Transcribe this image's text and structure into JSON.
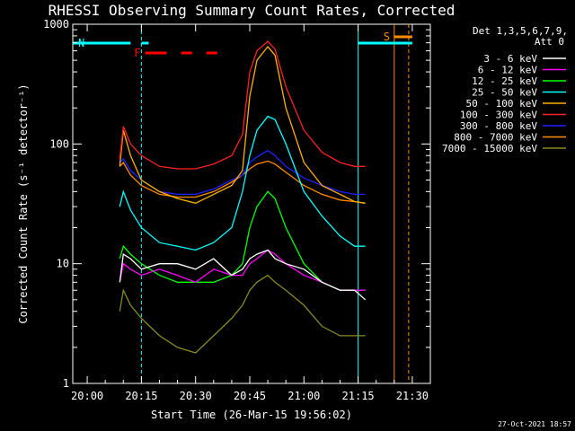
{
  "chart_data": {
    "type": "line",
    "title": "RHESSI Observing Summary Count Rates, Corrected",
    "xlabel": "Start Time (26-Mar-15 19:56:02)",
    "ylabel": "Corrected Count Rate (s⁻¹ detector⁻¹)",
    "y_scale": "log",
    "ylim": [
      1,
      1000
    ],
    "xlim": [
      "19:56",
      "21:35"
    ],
    "x_ticks": [
      "20:00",
      "20:15",
      "20:30",
      "20:45",
      "21:00",
      "21:15",
      "21:30"
    ],
    "y_ticks": [
      "1",
      "10",
      "100",
      "1000"
    ],
    "legend_header": [
      "Det 1,3,5,6,7,9,",
      "Att 0"
    ],
    "legend_position": "top-right",
    "footer_date": "27-Oct-2021 18:57",
    "x": [
      "20:09",
      "20:10",
      "20:12",
      "20:15",
      "20:20",
      "20:25",
      "20:30",
      "20:35",
      "20:40",
      "20:43",
      "20:45",
      "20:47",
      "20:50",
      "20:52",
      "20:55",
      "21:00",
      "21:05",
      "21:10",
      "21:14",
      "21:17"
    ],
    "series": [
      {
        "name": "3 - 6 keV",
        "color": "#ffffff",
        "values": [
          7,
          12,
          11,
          9,
          10,
          10,
          9,
          11,
          8,
          9,
          11,
          12,
          13,
          11,
          10,
          9,
          7,
          6,
          6,
          5
        ]
      },
      {
        "name": "6 - 12 keV",
        "color": "#ff00ff",
        "values": [
          7,
          10,
          9,
          8,
          9,
          8,
          7,
          9,
          8,
          8,
          10,
          11,
          13,
          12,
          10,
          8,
          7,
          6,
          6,
          6
        ]
      },
      {
        "name": "12 - 25 keV",
        "color": "#00ff00",
        "values": [
          11,
          14,
          12,
          10,
          8,
          7,
          7,
          7,
          8,
          10,
          20,
          30,
          40,
          35,
          20,
          10,
          7,
          6,
          6,
          6
        ]
      },
      {
        "name": "25 - 50 keV",
        "color": "#00ffff",
        "values": [
          30,
          40,
          28,
          20,
          15,
          14,
          13,
          15,
          20,
          40,
          80,
          130,
          170,
          160,
          100,
          40,
          25,
          17,
          14,
          14
        ]
      },
      {
        "name": "50 - 100 keV",
        "color": "#ffb000",
        "values": [
          65,
          130,
          80,
          50,
          40,
          35,
          32,
          38,
          45,
          60,
          250,
          500,
          650,
          550,
          200,
          70,
          45,
          38,
          33,
          32
        ]
      },
      {
        "name": "100 - 300 keV",
        "color": "#ff2020",
        "values": [
          75,
          140,
          100,
          80,
          65,
          62,
          62,
          68,
          80,
          120,
          400,
          600,
          720,
          620,
          300,
          130,
          85,
          70,
          65,
          65
        ]
      },
      {
        "name": "300 - 800 keV",
        "color": "#2020ff",
        "values": [
          70,
          75,
          60,
          50,
          40,
          38,
          38,
          42,
          50,
          55,
          70,
          78,
          88,
          80,
          65,
          52,
          45,
          40,
          38,
          38
        ]
      },
      {
        "name": "800 - 7000 keV",
        "color": "#ff8c00",
        "values": [
          65,
          70,
          55,
          45,
          38,
          36,
          36,
          40,
          48,
          55,
          62,
          68,
          72,
          68,
          58,
          45,
          38,
          34,
          33,
          32
        ]
      },
      {
        "name": "7000 - 15000 keV",
        "color": "#8a8a1e",
        "values": [
          4,
          6,
          4.5,
          3.5,
          2.5,
          2,
          1.8,
          2.5,
          3.5,
          4.5,
          6,
          7,
          8,
          7,
          6,
          4.5,
          3,
          2.5,
          2.5,
          2.5
        ]
      }
    ],
    "annotations": {
      "flag_lines": [
        {
          "label": "N",
          "color": "#00ffff",
          "segments": [
            [
              "19:56",
              "20:12"
            ],
            [
              "20:15",
              "20:17"
            ]
          ]
        },
        {
          "label": "F",
          "color": "#ff0000",
          "segments": [
            [
              "20:16",
              "20:22"
            ],
            [
              "20:26",
              "20:29"
            ],
            [
              "20:33",
              "20:36"
            ]
          ]
        },
        {
          "label": "S",
          "color": "#ff8c00",
          "segments": [
            [
              "21:25",
              "21:30"
            ]
          ]
        },
        {
          "label": "",
          "color": "#00ffff",
          "segments": [
            [
              "21:15",
              "21:30"
            ]
          ]
        }
      ],
      "vertical_lines": [
        {
          "time": "20:15",
          "color": "#00ffff",
          "style": "dashed"
        },
        {
          "time": "21:15",
          "color": "#00ffff",
          "style": "solid"
        },
        {
          "time": "21:25",
          "color": "#ff8c00",
          "style": "solid"
        },
        {
          "time": "21:29",
          "color": "#ff8c00",
          "style": "dashed"
        }
      ]
    }
  }
}
